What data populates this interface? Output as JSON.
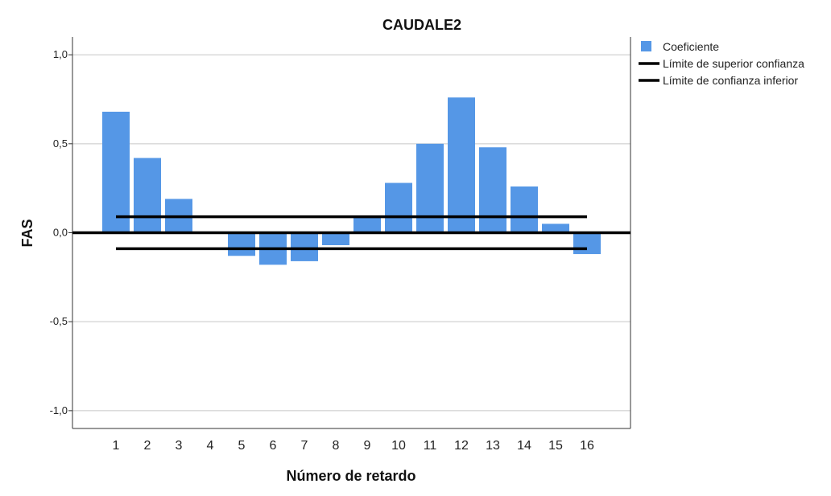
{
  "chart_data": {
    "type": "bar",
    "title": "CAUDALE2",
    "xlabel": "Número de retardo",
    "ylabel": "FAS",
    "categories": [
      "1",
      "2",
      "3",
      "4",
      "5",
      "6",
      "7",
      "8",
      "9",
      "10",
      "11",
      "12",
      "13",
      "14",
      "15",
      "16"
    ],
    "series": [
      {
        "name": "Coeficiente",
        "color": "#5597e6",
        "values": [
          0.68,
          0.42,
          0.19,
          0.0,
          -0.13,
          -0.18,
          -0.16,
          -0.07,
          0.09,
          0.28,
          0.5,
          0.76,
          0.48,
          0.26,
          0.05,
          -0.12
        ]
      }
    ],
    "confidence": {
      "upper": 0.09,
      "lower": -0.09
    },
    "ylim": [
      -1.1,
      1.1
    ],
    "yticks": [
      1.0,
      0.5,
      0.0,
      -0.5,
      -1.0
    ],
    "ytick_labels": [
      "1,0",
      "0,5",
      "0,0",
      "-0,5",
      "-1,0"
    ],
    "grid": true,
    "legend": {
      "position": "top-right",
      "items": [
        {
          "label": "Coeficiente",
          "kind": "bar",
          "color": "#5597e6"
        },
        {
          "label": "Límite de superior confianza",
          "kind": "line",
          "color": "#000000"
        },
        {
          "label": "Límite de confianza inferior",
          "kind": "line",
          "color": "#000000"
        }
      ]
    }
  }
}
